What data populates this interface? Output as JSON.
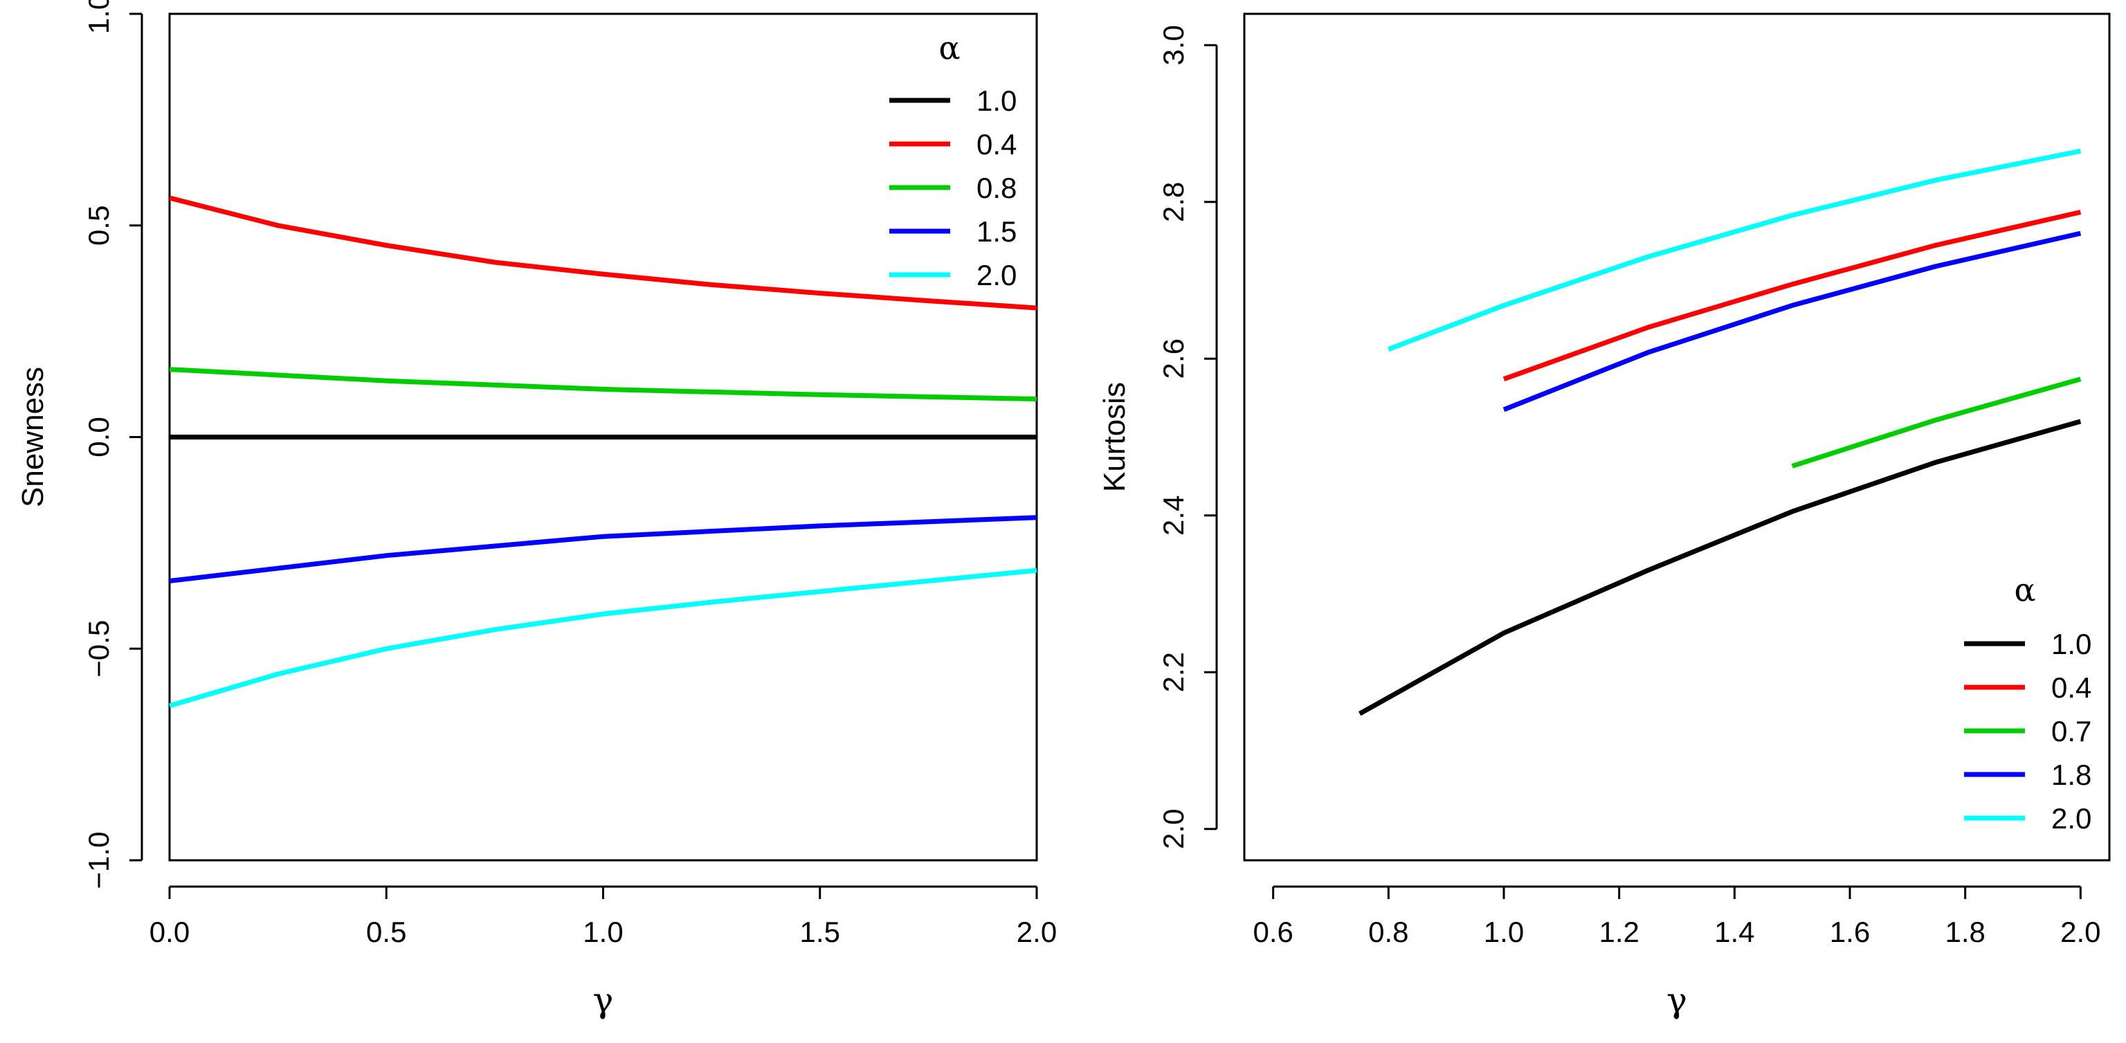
{
  "chart_data": [
    {
      "type": "line",
      "id": "skewness",
      "xlabel": "γ",
      "ylabel": "Snewness",
      "xlim": [
        0,
        2
      ],
      "ylim": [
        -1,
        1
      ],
      "xticks": [
        "0.0",
        "0.5",
        "1.0",
        "1.5",
        "2.0"
      ],
      "xtick_values": [
        0,
        0.5,
        1,
        1.5,
        2
      ],
      "yticks": [
        "−1.0",
        "−0.5",
        "0.0",
        "0.5",
        "1.0"
      ],
      "ytick_values": [
        -1,
        -0.5,
        0,
        0.5,
        1
      ],
      "legend": {
        "title": "α",
        "position": "top-right"
      },
      "series": [
        {
          "name": "1.0",
          "color": "#000000",
          "x": [
            0,
            0.5,
            1,
            1.5,
            2
          ],
          "y": [
            0,
            0,
            0,
            0,
            0
          ]
        },
        {
          "name": "0.4",
          "color": "#ff0000",
          "x": [
            0,
            0.25,
            0.5,
            0.75,
            1,
            1.25,
            1.5,
            1.75,
            2
          ],
          "y": [
            0.565,
            0.5,
            0.453,
            0.413,
            0.385,
            0.36,
            0.34,
            0.322,
            0.305
          ]
        },
        {
          "name": "0.8",
          "color": "#00cd00",
          "x": [
            0,
            0.5,
            1,
            1.5,
            2
          ],
          "y": [
            0.16,
            0.133,
            0.113,
            0.1,
            0.09
          ]
        },
        {
          "name": "1.5",
          "color": "#0000ff",
          "x": [
            0,
            0.5,
            1,
            1.5,
            2
          ],
          "y": [
            -0.34,
            -0.28,
            -0.235,
            -0.21,
            -0.19
          ]
        },
        {
          "name": "2.0",
          "color": "#00ffff",
          "x": [
            0,
            0.25,
            0.5,
            0.75,
            1,
            1.25,
            1.5,
            1.75,
            2
          ],
          "y": [
            -0.635,
            -0.56,
            -0.5,
            -0.455,
            -0.418,
            -0.39,
            -0.365,
            -0.34,
            -0.315
          ]
        }
      ]
    },
    {
      "type": "line",
      "id": "kurtosis",
      "xlabel": "γ",
      "ylabel": "Kurtosis",
      "xlim": [
        0.55,
        2.05
      ],
      "ylim": [
        1.96,
        3.04
      ],
      "xticks": [
        "0.6",
        "0.8",
        "1.0",
        "1.2",
        "1.4",
        "1.6",
        "1.8",
        "2.0"
      ],
      "xtick_values": [
        0.6,
        0.8,
        1.0,
        1.2,
        1.4,
        1.6,
        1.8,
        2.0
      ],
      "yticks": [
        "2.0",
        "2.2",
        "2.4",
        "2.6",
        "2.8",
        "3.0"
      ],
      "ytick_values": [
        2.0,
        2.2,
        2.4,
        2.6,
        2.8,
        3.0
      ],
      "legend": {
        "title": "α",
        "position": "bottom-right"
      },
      "series": [
        {
          "name": "1.0",
          "color": "#000000",
          "x": [
            0.75,
            1.0,
            1.25,
            1.5,
            1.75,
            2.0
          ],
          "y": [
            2.147,
            2.25,
            2.33,
            2.405,
            2.468,
            2.52
          ]
        },
        {
          "name": "0.4",
          "color": "#ff0000",
          "x": [
            1.0,
            1.25,
            1.5,
            1.75,
            2.0
          ],
          "y": [
            2.574,
            2.64,
            2.695,
            2.745,
            2.787
          ]
        },
        {
          "name": "0.7",
          "color": "#00cd00",
          "x": [
            1.5,
            1.75,
            2.0
          ],
          "y": [
            2.463,
            2.522,
            2.574
          ]
        },
        {
          "name": "1.8",
          "color": "#0000ff",
          "x": [
            1.0,
            1.25,
            1.5,
            1.75,
            2.0
          ],
          "y": [
            2.535,
            2.608,
            2.668,
            2.718,
            2.76
          ]
        },
        {
          "name": "2.0",
          "color": "#00ffff",
          "x": [
            0.8,
            1.0,
            1.25,
            1.5,
            1.75,
            2.0
          ],
          "y": [
            2.612,
            2.668,
            2.73,
            2.783,
            2.828,
            2.865
          ]
        }
      ]
    }
  ]
}
